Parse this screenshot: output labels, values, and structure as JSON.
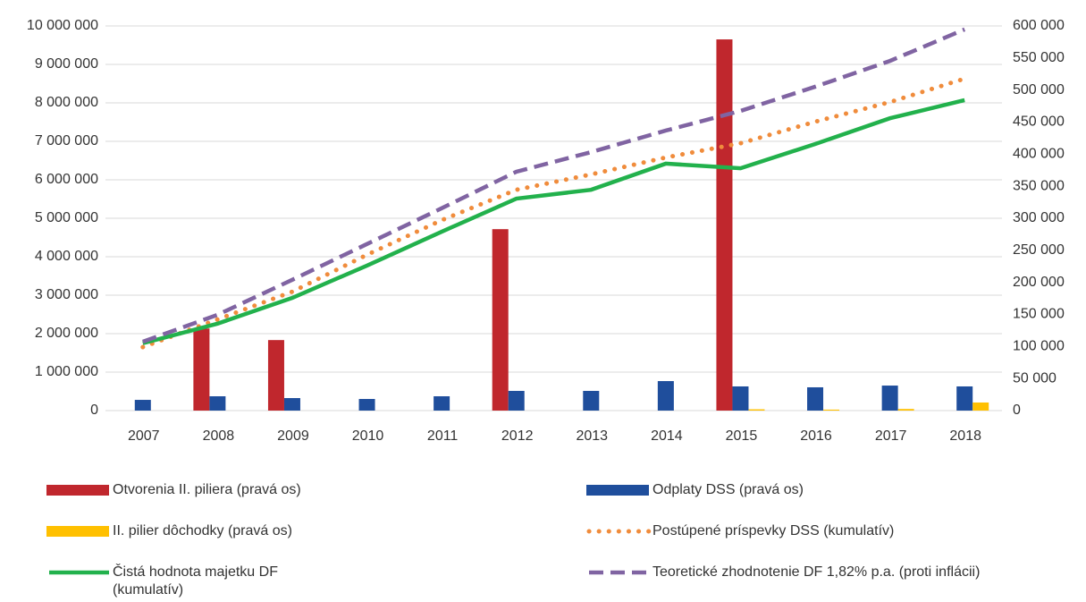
{
  "chart_data": {
    "type": "bar",
    "categories": [
      "2007",
      "2008",
      "2009",
      "2010",
      "2011",
      "2012",
      "2013",
      "2014",
      "2015",
      "2016",
      "2017",
      "2018"
    ],
    "ylim": [
      0,
      10000000
    ],
    "yticks": [
      0,
      {
        "value": 1000000,
        "label": "1 000 000"
      },
      {
        "value": 2000000,
        "label": "2 000 000"
      },
      {
        "value": 3000000,
        "label": "3 000 000"
      },
      {
        "value": 4000000,
        "label": "4 000 000"
      },
      {
        "value": 5000000,
        "label": "5 000 000"
      },
      {
        "value": 6000000,
        "label": "6 000 000"
      },
      {
        "value": 7000000,
        "label": "7 000 000"
      },
      {
        "value": 8000000,
        "label": "8 000 000"
      },
      {
        "value": 9000000,
        "label": "9 000 000"
      },
      {
        "value": 10000000,
        "label": "10 000 000"
      }
    ],
    "y2lim": [
      0,
      600000
    ],
    "y2ticks": [
      0,
      {
        "value": 50000,
        "label": "50 000"
      },
      {
        "value": 100000,
        "label": "100 000"
      },
      {
        "value": 150000,
        "label": "150 000"
      },
      {
        "value": 200000,
        "label": "200 000"
      },
      {
        "value": 250000,
        "label": "250 000"
      },
      {
        "value": 300000,
        "label": "300 000"
      },
      {
        "value": 350000,
        "label": "350 000"
      },
      {
        "value": 400000,
        "label": "400 000"
      },
      {
        "value": 450000,
        "label": "450 000"
      },
      {
        "value": 500000,
        "label": "500 000"
      },
      {
        "value": 550000,
        "label": "550 000"
      },
      {
        "value": 600000,
        "label": "600 000"
      }
    ],
    "grid": true,
    "legend": "bottom",
    "series": [
      {
        "name": "Otvorenia II. piliera (pravá os)",
        "type": "bar",
        "axis": "y2",
        "color": "#c0272d",
        "values": [
          0,
          128000,
          110000,
          0,
          0,
          283000,
          0,
          0,
          579000,
          0,
          0,
          0
        ]
      },
      {
        "name": "Odplaty DSS (pravá os)",
        "type": "bar",
        "axis": "y2",
        "color": "#1f4e9c",
        "values": [
          16700,
          22300,
          19500,
          18100,
          22300,
          30700,
          30700,
          46000,
          37700,
          36300,
          39000,
          37700
        ]
      },
      {
        "name": "II. pilier dôchodky (pravá os)",
        "type": "bar",
        "axis": "y2",
        "color": "#ffc000",
        "values": [
          0,
          0,
          0,
          0,
          0,
          0,
          0,
          0,
          2000,
          1500,
          2500,
          12600
        ]
      },
      {
        "name": "Postúpené príspevky DSS (kumulatív)",
        "type": "line",
        "style": "dotted",
        "color": "#f08c3c",
        "values": [
          1650000,
          2370000,
          3090000,
          4050000,
          4950000,
          5740000,
          6140000,
          6580000,
          6950000,
          7510000,
          8020000,
          8630000
        ]
      },
      {
        "name": "Čistá hodnota majetku DF (kumulatív)",
        "type": "line",
        "style": "solid",
        "color": "#22b14c",
        "values": [
          1750000,
          2260000,
          2930000,
          3770000,
          4650000,
          5510000,
          5740000,
          6420000,
          6300000,
          6930000,
          7600000,
          8070000
        ]
      },
      {
        "name": "Teoretické zhodnotenie DF 1,82% p.a. (proti inflácii)",
        "type": "line",
        "style": "dashed",
        "color": "#8064a2",
        "values": [
          1790000,
          2490000,
          3400000,
          4330000,
          5260000,
          6210000,
          6720000,
          7280000,
          7790000,
          8420000,
          9090000,
          9910000
        ]
      }
    ]
  }
}
